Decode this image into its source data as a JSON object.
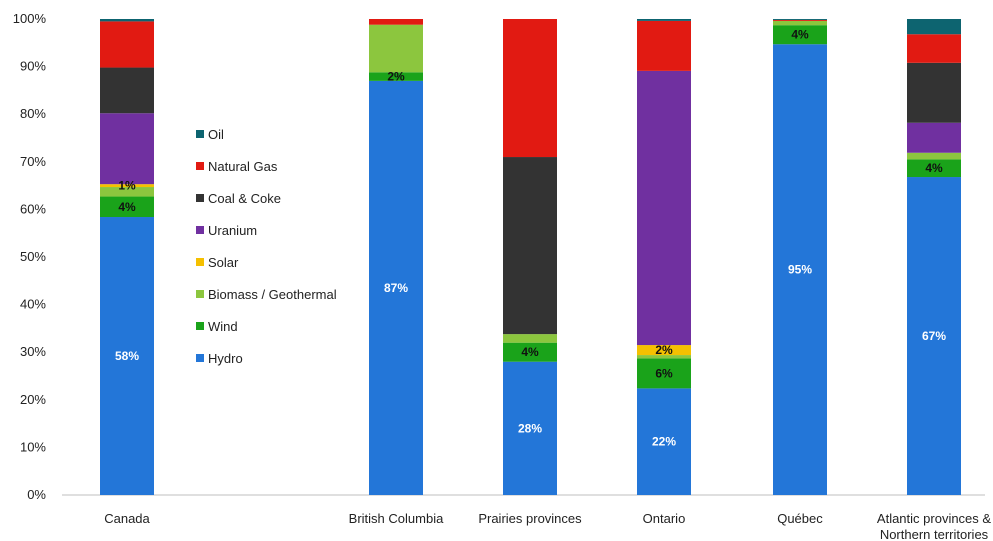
{
  "chart_data": {
    "type": "bar",
    "stacked": true,
    "percent": true,
    "categories": [
      "Canada",
      "British Columbia",
      "Prairies provinces",
      "Ontario",
      "Québec",
      "Atlantic provinces & Northern territories"
    ],
    "ylim": [
      0,
      100
    ],
    "yticks": [
      "0%",
      "10%",
      "20%",
      "30%",
      "40%",
      "50%",
      "60%",
      "70%",
      "80%",
      "90%",
      "100%"
    ],
    "grid": false,
    "legend_position": "center-left",
    "series": [
      {
        "name": "Hydro",
        "color": "#2376d8",
        "values": [
          58.4,
          87.0,
          28.0,
          22.4,
          94.7,
          66.8
        ],
        "labels": [
          "58%",
          "87%",
          "28%",
          "22%",
          "95%",
          "67%"
        ]
      },
      {
        "name": "Wind",
        "color": "#1aa31a",
        "values": [
          4.3,
          1.8,
          4.0,
          6.3,
          4.0,
          3.7
        ],
        "labels": [
          "4%",
          "2%",
          "4%",
          "6%",
          "4%",
          "4%"
        ]
      },
      {
        "name": "Biomass / Geothermal",
        "color": "#8cc63e",
        "values": [
          2.0,
          10.0,
          1.8,
          0.7,
          0.9,
          1.4
        ],
        "labels": [
          "",
          "",
          "",
          "",
          "",
          ""
        ]
      },
      {
        "name": "Solar",
        "color": "#f5c000",
        "values": [
          0.6,
          0.0,
          0.0,
          2.1,
          0.0,
          0.0
        ],
        "labels": [
          "1%",
          "",
          "",
          "2%",
          "",
          ""
        ]
      },
      {
        "name": "Uranium",
        "color": "#7030a0",
        "values": [
          14.9,
          0.0,
          0.0,
          57.6,
          0.0,
          6.3
        ],
        "labels": [
          "",
          "",
          "",
          "",
          "",
          ""
        ]
      },
      {
        "name": "Coal & Coke",
        "color": "#333333",
        "values": [
          9.6,
          0.0,
          37.2,
          0.0,
          0.0,
          12.6
        ],
        "labels": [
          "",
          "",
          "",
          "",
          "",
          ""
        ]
      },
      {
        "name": "Natural Gas",
        "color": "#e11a12",
        "values": [
          9.7,
          1.2,
          29.0,
          10.5,
          0.2,
          6.0
        ],
        "labels": [
          "",
          "",
          "",
          "",
          "",
          ""
        ]
      },
      {
        "name": "Oil",
        "color": "#0d6470",
        "values": [
          0.5,
          0.0,
          0.0,
          0.4,
          0.2,
          3.2
        ],
        "labels": [
          "",
          "",
          "",
          "",
          "",
          ""
        ]
      }
    ]
  }
}
